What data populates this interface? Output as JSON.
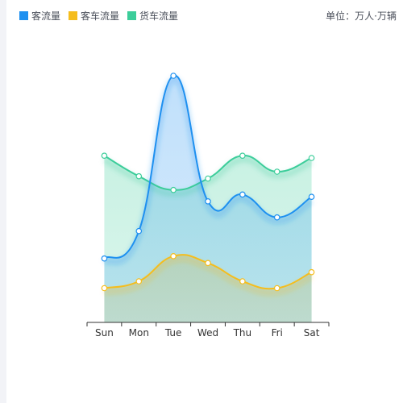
{
  "chart_data": {
    "type": "area",
    "categories": [
      "Sun",
      "Mon",
      "Tue",
      "Wed",
      "Thu",
      "Fri",
      "Sat"
    ],
    "series": [
      {
        "name": "客流量",
        "color": "#1e90f0",
        "values": [
          1.4,
          2.0,
          5.4,
          2.65,
          2.8,
          2.3,
          2.75
        ]
      },
      {
        "name": "客车流量",
        "color": "#f5bd1d",
        "values": [
          0.75,
          0.9,
          1.45,
          1.3,
          0.9,
          0.75,
          1.1
        ]
      },
      {
        "name": "货车流量",
        "color": "#3ccd9a",
        "values": [
          3.65,
          3.2,
          2.9,
          3.15,
          3.65,
          3.3,
          3.6
        ]
      }
    ],
    "unit": "单位：万人·万辆",
    "title": "",
    "xlabel": "",
    "ylabel": "",
    "ylim": [
      0,
      6
    ],
    "grid": false,
    "legend_position": "top-left"
  }
}
